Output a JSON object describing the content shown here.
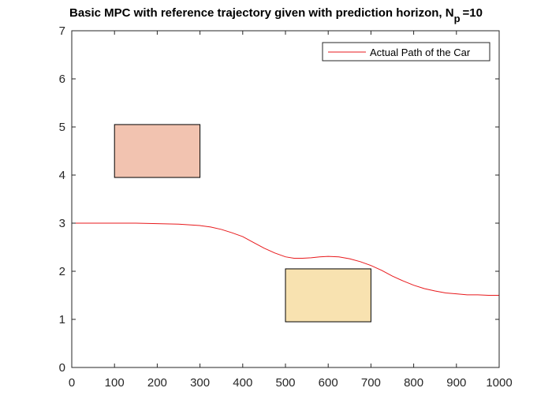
{
  "chart_data": {
    "type": "line",
    "title": "Basic MPC with reference trajectory given with prediction horizon, N",
    "title_subscript": "p",
    "title_suffix": "=10",
    "xlabel": "",
    "ylabel": "",
    "xlim": [
      0,
      1000
    ],
    "ylim": [
      0,
      7
    ],
    "xticks": [
      0,
      100,
      200,
      300,
      400,
      500,
      600,
      700,
      800,
      900,
      1000
    ],
    "yticks": [
      0,
      1,
      2,
      3,
      4,
      5,
      6,
      7
    ],
    "grid": false,
    "legend_position": "top-right",
    "series": [
      {
        "name": "Actual Path of the Car",
        "color": "#e8191c",
        "x": [
          0,
          50,
          100,
          150,
          200,
          250,
          300,
          325,
          350,
          375,
          400,
          425,
          450,
          475,
          500,
          520,
          540,
          560,
          580,
          600,
          625,
          650,
          675,
          700,
          725,
          750,
          775,
          800,
          825,
          850,
          875,
          900,
          925,
          950,
          975,
          1000
        ],
        "y": [
          3.0,
          3.0,
          3.0,
          3.0,
          2.99,
          2.98,
          2.95,
          2.92,
          2.87,
          2.8,
          2.72,
          2.6,
          2.48,
          2.38,
          2.3,
          2.27,
          2.27,
          2.28,
          2.3,
          2.31,
          2.3,
          2.26,
          2.2,
          2.12,
          2.02,
          1.9,
          1.8,
          1.71,
          1.64,
          1.59,
          1.55,
          1.53,
          1.51,
          1.51,
          1.5,
          1.5
        ]
      }
    ],
    "obstacles": [
      {
        "x0": 100,
        "x1": 300,
        "y0": 3.95,
        "y1": 5.05,
        "fill": "#f2c3b0"
      },
      {
        "x0": 500,
        "x1": 700,
        "y0": 0.95,
        "y1": 2.05,
        "fill": "#f8e2b0"
      }
    ]
  }
}
